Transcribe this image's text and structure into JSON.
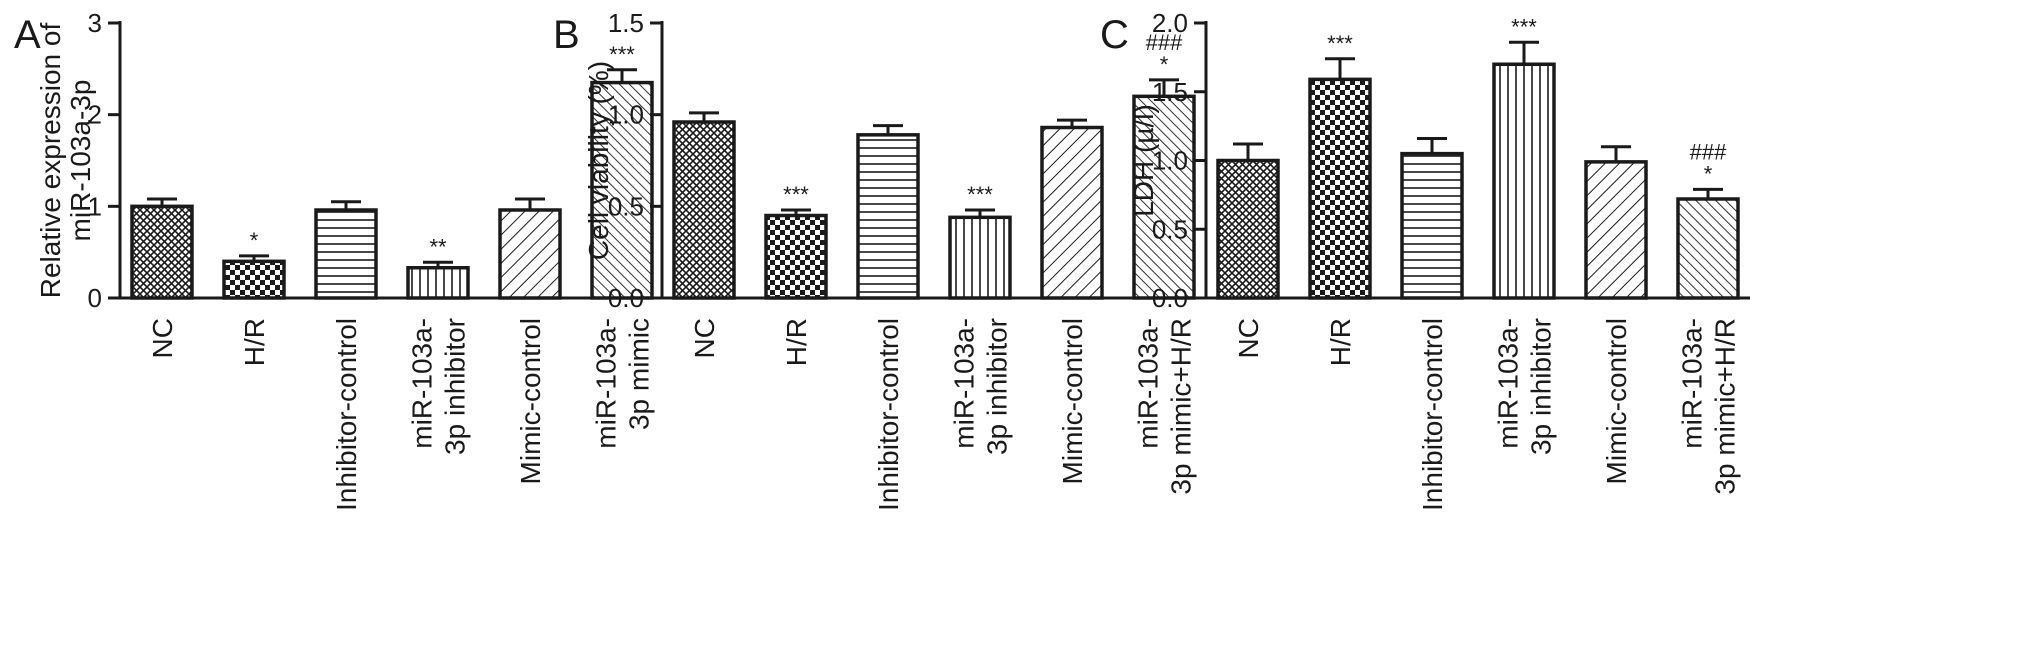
{
  "chart_data": [
    {
      "type": "bar",
      "panel": "A",
      "ylabel": [
        "Relative expression of",
        "miR-103a-3p"
      ],
      "ylim": [
        0,
        3
      ],
      "yticks": [
        0,
        1,
        2,
        3
      ],
      "ytick_labels": [
        "0",
        "1",
        "2",
        "3"
      ],
      "categories": [
        [
          "NC"
        ],
        [
          "H/R"
        ],
        [
          "Inhibitor-control"
        ],
        [
          "miR-103a-",
          "3p inhibitor"
        ],
        [
          "Mimic-control"
        ],
        [
          "miR-103a-",
          "3p mimic"
        ]
      ],
      "values": [
        1.0,
        0.4,
        0.96,
        0.33,
        0.96,
        2.35
      ],
      "errors": [
        0.08,
        0.06,
        0.09,
        0.06,
        0.12,
        0.14
      ],
      "significance": [
        [],
        [
          "*"
        ],
        [],
        [
          "**"
        ],
        [],
        [
          "***"
        ]
      ],
      "patterns": [
        "cross",
        "check",
        "hlines",
        "vlines",
        "diag",
        "diag-dense"
      ]
    },
    {
      "type": "bar",
      "panel": "B",
      "ylabel": [
        "Cell viability (%)"
      ],
      "ylim": [
        0,
        1.5
      ],
      "yticks": [
        0,
        0.5,
        1.0,
        1.5
      ],
      "ytick_labels": [
        "0.0",
        "0.5",
        "1.0",
        "1.5"
      ],
      "categories": [
        [
          "NC"
        ],
        [
          "H/R"
        ],
        [
          "Inhibitor-control"
        ],
        [
          "miR-103a-",
          "3p inhibitor"
        ],
        [
          "Mimic-control"
        ],
        [
          "miR-103a-",
          "3p mimic+H/R"
        ]
      ],
      "values": [
        0.96,
        0.45,
        0.89,
        0.44,
        0.93,
        1.1
      ],
      "errors": [
        0.05,
        0.03,
        0.05,
        0.04,
        0.04,
        0.09
      ],
      "significance": [
        [],
        [
          "***"
        ],
        [],
        [
          "***"
        ],
        [],
        [
          "###",
          "*"
        ]
      ],
      "patterns": [
        "cross",
        "check",
        "hlines",
        "vlines",
        "diag",
        "diag-dense"
      ]
    },
    {
      "type": "bar",
      "panel": "C",
      "ylabel": [
        "LDH (µ/l)"
      ],
      "ylim": [
        0,
        2.0
      ],
      "yticks": [
        0,
        0.5,
        1.0,
        1.5,
        2.0
      ],
      "ytick_labels": [
        "0.0",
        "0.5",
        "1.0",
        "1.5",
        "2.0"
      ],
      "categories": [
        [
          "NC"
        ],
        [
          "H/R"
        ],
        [
          "Inhibitor-control"
        ],
        [
          "miR-103a-",
          "3p inhibitor"
        ],
        [
          "Mimic-control"
        ],
        [
          "miR-103a-",
          "3p mimic+H/R"
        ]
      ],
      "values": [
        1.0,
        1.59,
        1.05,
        1.7,
        0.99,
        0.72
      ],
      "errors": [
        0.12,
        0.15,
        0.11,
        0.16,
        0.11,
        0.07
      ],
      "significance": [
        [],
        [
          "***"
        ],
        [],
        [
          "***"
        ],
        [],
        [
          "###",
          "*"
        ]
      ],
      "patterns": [
        "cross",
        "check",
        "hlines",
        "vlines",
        "diag",
        "diag-dense"
      ]
    }
  ]
}
